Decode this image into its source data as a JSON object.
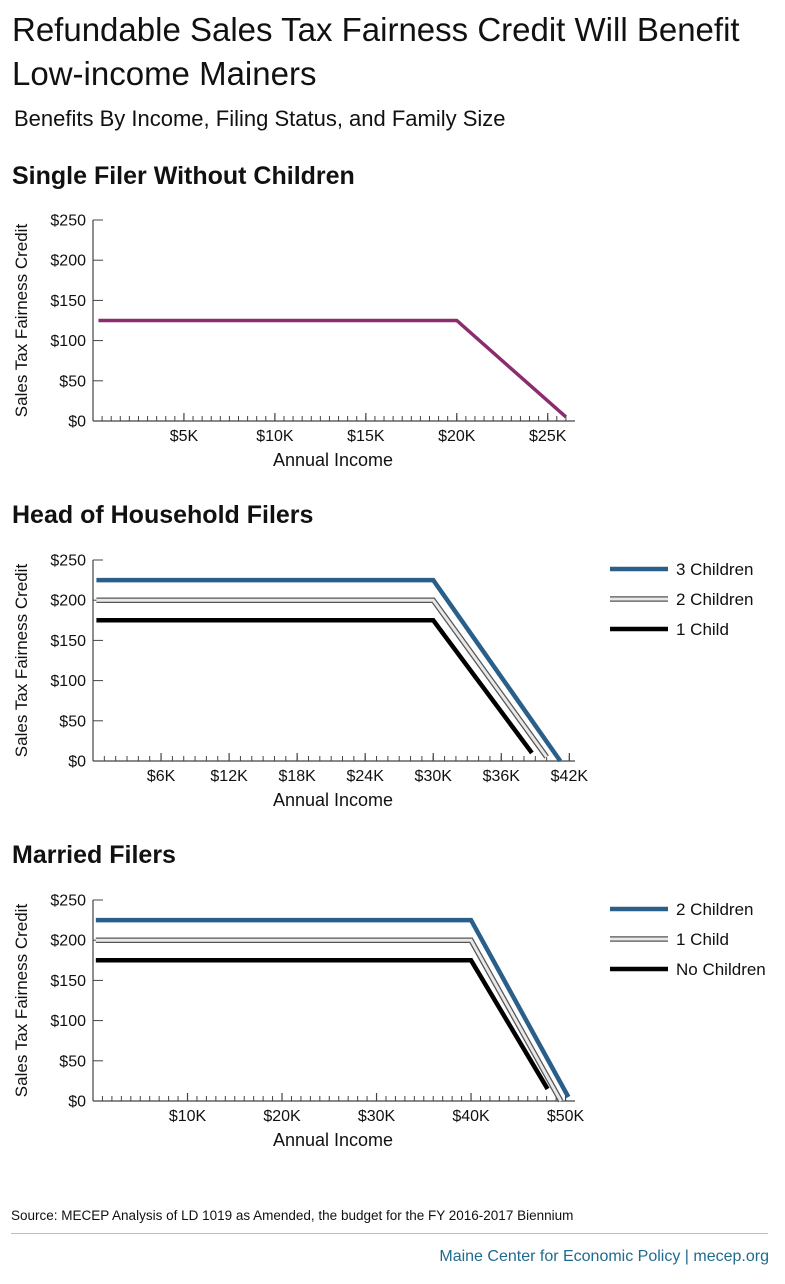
{
  "header": {
    "title": "Refundable Sales Tax Fairness Credit Will Benefit Low-income Mainers",
    "subtitle": "Benefits By Income, Filing Status, and Family Size"
  },
  "colors": {
    "purple": "#8b2c6e",
    "blue": "#2a5f8a",
    "black": "#000000",
    "gray_fill": "#e8e8e8",
    "gray_outline": "#555555"
  },
  "chart_data": [
    {
      "type": "line",
      "title": "Single Filer Without Children",
      "xlabel": "Annual Income",
      "ylabel": "Sales Tax Fairness Credit",
      "xlim": [
        0,
        26500
      ],
      "ylim": [
        0,
        250
      ],
      "x_ticks": [
        5000,
        10000,
        15000,
        20000,
        25000
      ],
      "x_tick_labels": [
        "$5K",
        "$10K",
        "$15K",
        "$20K",
        "$25K"
      ],
      "y_ticks": [
        0,
        50,
        100,
        150,
        200,
        250
      ],
      "y_tick_labels": [
        "$0",
        "$50",
        "$100",
        "$150",
        "$200",
        "$250"
      ],
      "minor_tick_step": 500,
      "legend": [],
      "series": [
        {
          "color": "#8b2c6e",
          "style": "solid",
          "x": [
            300,
            20000,
            26000
          ],
          "y": [
            125,
            125,
            5
          ]
        }
      ]
    },
    {
      "type": "line",
      "title": "Head of Household Filers",
      "xlabel": "Annual Income",
      "ylabel": "Sales Tax Fairness Credit",
      "xlim": [
        0,
        42500
      ],
      "ylim": [
        0,
        250
      ],
      "x_ticks": [
        6000,
        12000,
        18000,
        24000,
        30000,
        36000,
        42000
      ],
      "x_tick_labels": [
        "$6K",
        "$12K",
        "$18K",
        "$24K",
        "$30K",
        "$36K",
        "$42K"
      ],
      "y_ticks": [
        0,
        50,
        100,
        150,
        200,
        250
      ],
      "y_tick_labels": [
        "$0",
        "$50",
        "$100",
        "$150",
        "$200",
        "$250"
      ],
      "minor_tick_step": 1000,
      "legend": [
        "3 Children",
        "2 Children",
        "1 Child"
      ],
      "series": [
        {
          "name": "3 Children",
          "color": "#2a5f8a",
          "style": "solid",
          "x": [
            300,
            30000,
            41200
          ],
          "y": [
            225,
            225,
            0
          ]
        },
        {
          "name": "2 Children",
          "color": "#e8e8e8",
          "style": "outlined",
          "x": [
            300,
            30000,
            40000
          ],
          "y": [
            200,
            200,
            5
          ]
        },
        {
          "name": "1 Child",
          "color": "#000000",
          "style": "solid",
          "x": [
            300,
            30000,
            38700
          ],
          "y": [
            175,
            175,
            10
          ]
        }
      ]
    },
    {
      "type": "line",
      "title": "Married Filers",
      "xlabel": "Annual Income",
      "ylabel": "Sales Tax Fairness Credit",
      "xlim": [
        0,
        51000
      ],
      "ylim": [
        0,
        250
      ],
      "x_ticks": [
        10000,
        20000,
        30000,
        40000,
        50000
      ],
      "x_tick_labels": [
        "$10K",
        "$20K",
        "$30K",
        "$40K",
        "$50K"
      ],
      "y_ticks": [
        0,
        50,
        100,
        150,
        200,
        250
      ],
      "y_tick_labels": [
        "$0",
        "$50",
        "$100",
        "$150",
        "$200",
        "$250"
      ],
      "minor_tick_step": 1000,
      "legend": [
        "2 Children",
        "1 Child",
        "No Children"
      ],
      "series": [
        {
          "name": "2 Children",
          "color": "#2a5f8a",
          "style": "solid",
          "x": [
            300,
            40000,
            50300
          ],
          "y": [
            225,
            225,
            5
          ]
        },
        {
          "name": "1 Child",
          "color": "#e8e8e8",
          "style": "outlined",
          "x": [
            300,
            40000,
            49500
          ],
          "y": [
            200,
            200,
            0
          ]
        },
        {
          "name": "No Children",
          "color": "#000000",
          "style": "solid",
          "x": [
            300,
            40000,
            48100
          ],
          "y": [
            175,
            175,
            15
          ]
        }
      ]
    }
  ],
  "footer": {
    "source": "Source: MECEP Analysis of LD 1019 as Amended, the budget for the FY 2016-2017 Biennium",
    "credit": "Maine Center for Economic Policy | mecep.org"
  }
}
